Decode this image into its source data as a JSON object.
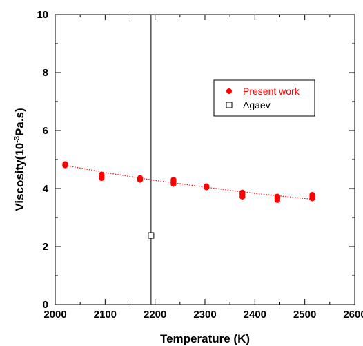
{
  "chart_data": {
    "type": "scatter",
    "xlabel": "Temperature (K)",
    "ylabel": {
      "prefix": "Viscosity(10",
      "exponent": "-3",
      "suffix": "Pa.s)"
    },
    "xlim": [
      2000,
      2600
    ],
    "ylim": [
      0,
      10
    ],
    "xticks": [
      "2000",
      "2100",
      "2200",
      "2300",
      "2400",
      "2500",
      "2600"
    ],
    "yticks": [
      "0",
      "2",
      "4",
      "6",
      "8",
      "10"
    ],
    "grid": false,
    "legend_position": "upper-right",
    "vertical_reference_line_x": 2192,
    "series": [
      {
        "name": "Present work",
        "marker": "filled-circle",
        "color": "#ff0000",
        "points": [
          {
            "x": 2020,
            "y": 4.8
          },
          {
            "x": 2020,
            "y": 4.84
          },
          {
            "x": 2093,
            "y": 4.36
          },
          {
            "x": 2093,
            "y": 4.44
          },
          {
            "x": 2093,
            "y": 4.48
          },
          {
            "x": 2170,
            "y": 4.3
          },
          {
            "x": 2170,
            "y": 4.36
          },
          {
            "x": 2237,
            "y": 4.16
          },
          {
            "x": 2237,
            "y": 4.24
          },
          {
            "x": 2237,
            "y": 4.3
          },
          {
            "x": 2303,
            "y": 4.04
          },
          {
            "x": 2303,
            "y": 4.08
          },
          {
            "x": 2375,
            "y": 3.72
          },
          {
            "x": 2375,
            "y": 3.8
          },
          {
            "x": 2375,
            "y": 3.86
          },
          {
            "x": 2445,
            "y": 3.6
          },
          {
            "x": 2445,
            "y": 3.66
          },
          {
            "x": 2445,
            "y": 3.72
          },
          {
            "x": 2515,
            "y": 3.66
          },
          {
            "x": 2515,
            "y": 3.72
          },
          {
            "x": 2515,
            "y": 3.78
          }
        ]
      },
      {
        "name": "Agaev",
        "marker": "open-square",
        "color": "#000000",
        "points": [
          {
            "x": 2192,
            "y": 2.38
          }
        ]
      }
    ],
    "fit_line": {
      "style": "dotted",
      "color": "#ff0000",
      "points": [
        {
          "x": 2020,
          "y": 4.8
        },
        {
          "x": 2100,
          "y": 4.55
        },
        {
          "x": 2200,
          "y": 4.28
        },
        {
          "x": 2300,
          "y": 4.05
        },
        {
          "x": 2400,
          "y": 3.83
        },
        {
          "x": 2515,
          "y": 3.63
        }
      ]
    }
  }
}
